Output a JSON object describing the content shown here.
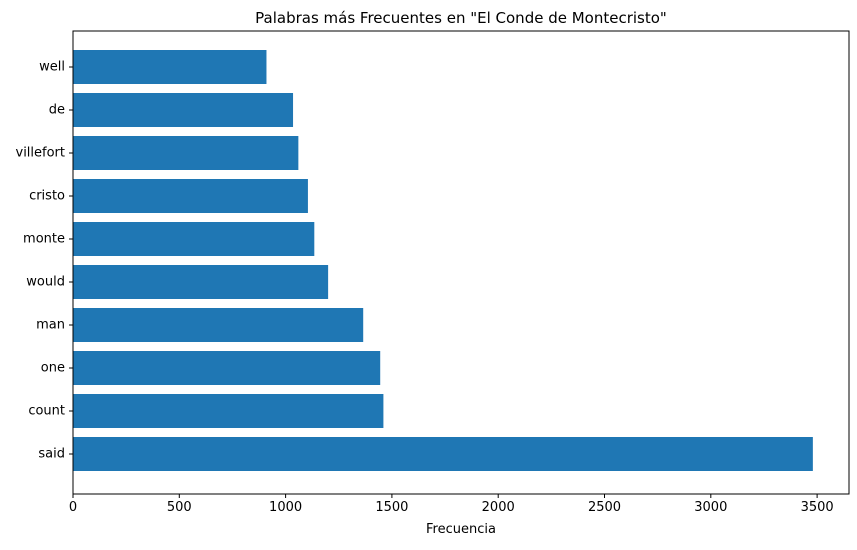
{
  "chart_data": {
    "type": "bar",
    "orientation": "horizontal",
    "title": "Palabras más Frecuentes en \"El Conde de Montecristo\"",
    "xlabel": "Frecuencia",
    "ylabel": "",
    "categories": [
      "said",
      "count",
      "one",
      "man",
      "would",
      "monte",
      "cristo",
      "villefort",
      "de",
      "well"
    ],
    "values": [
      3480,
      1460,
      1445,
      1365,
      1200,
      1135,
      1105,
      1060,
      1035,
      910
    ],
    "xlim": [
      0,
      3650
    ],
    "xticks": [
      0,
      500,
      1000,
      1500,
      2000,
      2500,
      3000,
      3500
    ],
    "grid": false,
    "bar_color": "#1f77b4"
  }
}
